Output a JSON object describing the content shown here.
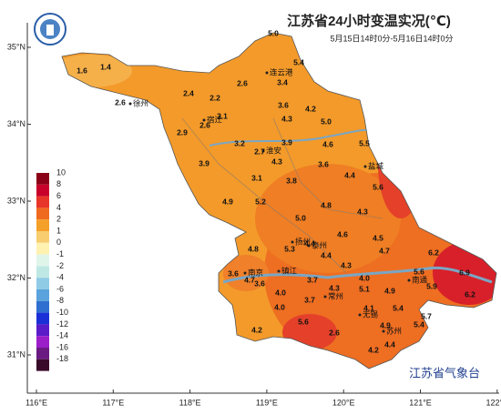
{
  "map": {
    "title": "江苏省24小时变温实况(℃)",
    "subtitle": "5月15日14时0分-5月16日14时0分",
    "credit": "江苏省气象台",
    "lon_ticks": [
      {
        "value": 116,
        "label": "116°E"
      },
      {
        "value": 117,
        "label": "117°E"
      },
      {
        "value": 118,
        "label": "118°E"
      },
      {
        "value": 119,
        "label": "119°E"
      },
      {
        "value": 120,
        "label": "120°E"
      },
      {
        "value": 121,
        "label": "121°E"
      },
      {
        "value": 122,
        "label": "122°E"
      }
    ],
    "lat_ticks": [
      {
        "value": 35,
        "label": "35°N"
      },
      {
        "value": 34,
        "label": "34°N"
      },
      {
        "value": 33,
        "label": "33°N"
      },
      {
        "value": 32,
        "label": "32°N"
      },
      {
        "value": 31,
        "label": "31°N"
      }
    ],
    "legend": [
      {
        "label": "10",
        "color": "#8b0016"
      },
      {
        "label": "8",
        "color": "#c8002a"
      },
      {
        "label": "6",
        "color": "#e8352a"
      },
      {
        "label": "4",
        "color": "#ef6a1f"
      },
      {
        "label": "2",
        "color": "#f5a028"
      },
      {
        "label": "1",
        "color": "#f8cd70"
      },
      {
        "label": "0",
        "color": "#fff2b0"
      },
      {
        "label": "-1",
        "color": "#e0f5ea"
      },
      {
        "label": "-2",
        "color": "#bfe8e4"
      },
      {
        "label": "-4",
        "color": "#90cbe6"
      },
      {
        "label": "-6",
        "color": "#5aa3dc"
      },
      {
        "label": "-8",
        "color": "#2f6fcf"
      },
      {
        "label": "-10",
        "color": "#1b2fd6"
      },
      {
        "label": "-12",
        "color": "#5a1cc8"
      },
      {
        "label": "-14",
        "color": "#9b1ec9"
      },
      {
        "label": "-16",
        "color": "#6a1a80"
      },
      {
        "label": "-18",
        "color": "#3a0a2a"
      }
    ],
    "cities": [
      "徐州",
      "宿迁",
      "连云港",
      "淮安",
      "盐城",
      "扬州",
      "泰州",
      "南京",
      "镇江",
      "常州",
      "无锡",
      "苏州",
      "南通"
    ],
    "stations": [
      "1.6",
      "1.4",
      "5.0",
      "5.4",
      "2.6",
      "2.4",
      "2.2",
      "2.6",
      "3.4",
      "3.6",
      "4.2",
      "3.1",
      "4.3",
      "5.0",
      "2.9",
      "2.6",
      "3.2",
      "2.7",
      "3.9",
      "4.6",
      "5.5",
      "3.9",
      "4.3",
      "3.6",
      "4.4",
      "5.6",
      "3.1",
      "3.8",
      "4.9",
      "5.2",
      "4.8",
      "4.3",
      "5.0",
      "4.8",
      "5.3",
      "4.4",
      "4.6",
      "4.5",
      "4.7",
      "6.2",
      "4.7",
      "4.4",
      "4.3",
      "5.6",
      "6.9",
      "3.6",
      "3.6",
      "4.0",
      "3.7",
      "4.0",
      "5.1",
      "4.9",
      "5.9",
      "6.2",
      "4.0",
      "3.7",
      "4.3",
      "5.4",
      "5.7",
      "4.1",
      "4.2",
      "5.6",
      "2.6",
      "4.9",
      "5.4",
      "4.4",
      "4.2"
    ]
  }
}
